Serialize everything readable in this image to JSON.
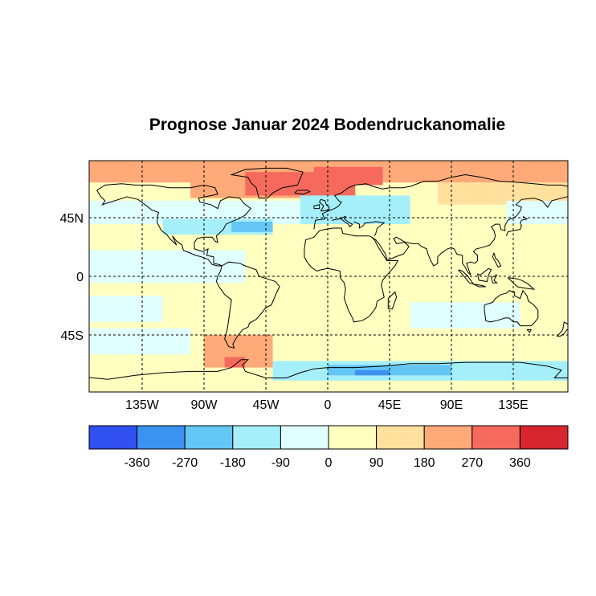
{
  "title": "Prognose Januar 2024 Bodendruckanomalie",
  "lon_ticks": [
    {
      "value": -135,
      "label": "135W"
    },
    {
      "value": -90,
      "label": "90W"
    },
    {
      "value": -45,
      "label": "45W"
    },
    {
      "value": 0,
      "label": "0"
    },
    {
      "value": 45,
      "label": "45E"
    },
    {
      "value": 90,
      "label": "90E"
    },
    {
      "value": 135,
      "label": "135E"
    }
  ],
  "lat_ticks": [
    {
      "value": 45,
      "label": "45N"
    },
    {
      "value": 0,
      "label": "0"
    },
    {
      "value": -45,
      "label": "45S"
    }
  ],
  "colorbar": {
    "colors": [
      "#3050f0",
      "#3c92f0",
      "#64c6f5",
      "#a4effa",
      "#e0ffff",
      "#ffffc0",
      "#ffe09c",
      "#ffaa78",
      "#f56a5c",
      "#d82630"
    ],
    "labels": [
      "-360",
      "-270",
      "-180",
      "-90",
      "0",
      "90",
      "180",
      "270",
      "360"
    ]
  },
  "chart_data": {
    "type": "heatmap",
    "title": "Prognose Januar 2024 Bodendruckanomalie",
    "xlim": [
      -180,
      180
    ],
    "ylim": [
      -90,
      90
    ],
    "grid": true,
    "levels": [
      -360,
      -270,
      -180,
      -90,
      0,
      90,
      180,
      270,
      360
    ],
    "regions": [
      {
        "lon": [
          -180,
          180
        ],
        "lat": [
          -90,
          90
        ],
        "value": 50
      },
      {
        "lon": [
          -180,
          180
        ],
        "lat": [
          72,
          90
        ],
        "value": 220
      },
      {
        "lon": [
          -100,
          -10
        ],
        "lat": [
          60,
          80
        ],
        "value": 230
      },
      {
        "lon": [
          -60,
          20
        ],
        "lat": [
          62,
          80
        ],
        "value": 290
      },
      {
        "lon": [
          -10,
          40
        ],
        "lat": [
          70,
          84
        ],
        "value": 310
      },
      {
        "lon": [
          80,
          180
        ],
        "lat": [
          55,
          72
        ],
        "value": 110
      },
      {
        "lon": [
          -180,
          -20
        ],
        "lat": [
          40,
          58
        ],
        "value": -70
      },
      {
        "lon": [
          -120,
          -40
        ],
        "lat": [
          32,
          44
        ],
        "value": -110
      },
      {
        "lon": [
          -70,
          -40
        ],
        "lat": [
          34,
          42
        ],
        "value": -190
      },
      {
        "lon": [
          -20,
          60
        ],
        "lat": [
          40,
          62
        ],
        "value": -120
      },
      {
        "lon": [
          130,
          180
        ],
        "lat": [
          40,
          58
        ],
        "value": -90
      },
      {
        "lon": [
          -180,
          -60
        ],
        "lat": [
          -5,
          20
        ],
        "value": -60
      },
      {
        "lon": [
          -180,
          -120
        ],
        "lat": [
          -35,
          -15
        ],
        "value": -60
      },
      {
        "lon": [
          60,
          140
        ],
        "lat": [
          -40,
          -20
        ],
        "value": -60
      },
      {
        "lon": [
          -180,
          -100
        ],
        "lat": [
          -60,
          -40
        ],
        "value": -60
      },
      {
        "lon": [
          -90,
          -40
        ],
        "lat": [
          -70,
          -45
        ],
        "value": 190
      },
      {
        "lon": [
          -75,
          -60
        ],
        "lat": [
          -70,
          -62
        ],
        "value": 280
      },
      {
        "lon": [
          -40,
          180
        ],
        "lat": [
          -80,
          -65
        ],
        "value": -120
      },
      {
        "lon": [
          0,
          90
        ],
        "lat": [
          -76,
          -68
        ],
        "value": -210
      },
      {
        "lon": [
          20,
          45
        ],
        "lat": [
          -76,
          -72
        ],
        "value": -300
      },
      {
        "lon": [
          120,
          170
        ],
        "lat": [
          -76,
          -68
        ],
        "value": -150
      }
    ]
  }
}
